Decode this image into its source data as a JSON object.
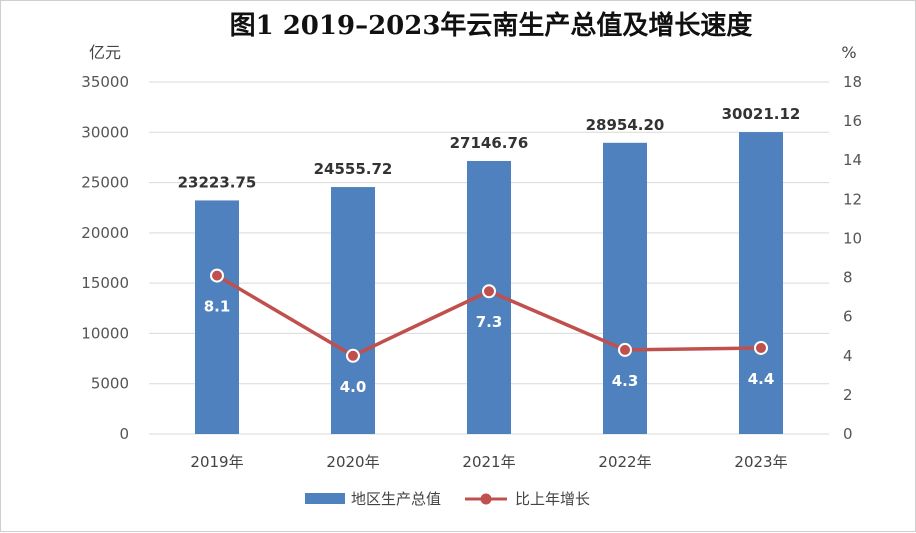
{
  "title": "图1  2019–2023年云南生产总值及增长速度",
  "chart_data": {
    "type": "bar",
    "title": "图1  2019–2023年云南生产总值及增长速度",
    "categories": [
      "2019年",
      "2020年",
      "2021年",
      "2022年",
      "2023年"
    ],
    "series": [
      {
        "name": "地区生产总值",
        "type": "bar",
        "axis": "left",
        "color": "#4e81bd",
        "values": [
          23223.75,
          24555.72,
          27146.76,
          28954.2,
          30021.12
        ],
        "labels": [
          "23223.75",
          "24555.72",
          "27146.76",
          "28954.20",
          "30021.12"
        ]
      },
      {
        "name": "比上年增长",
        "type": "line",
        "axis": "right",
        "color": "#c0504d",
        "values": [
          8.1,
          4.0,
          7.3,
          4.3,
          4.4
        ],
        "labels": [
          "8.1",
          "4.0",
          "7.3",
          "4.3",
          "4.4"
        ]
      }
    ],
    "y_left": {
      "unit": "亿元",
      "ylim": [
        0,
        35000
      ],
      "ticks": [
        "0",
        "5000",
        "10000",
        "15000",
        "20000",
        "25000",
        "30000",
        "35000"
      ]
    },
    "y_right": {
      "unit": "%",
      "ylim": [
        0,
        18
      ],
      "ticks": [
        "0",
        "2",
        "4",
        "6",
        "8",
        "10",
        "12",
        "14",
        "16",
        "18"
      ]
    },
    "grid": true,
    "legend": "bottom"
  }
}
